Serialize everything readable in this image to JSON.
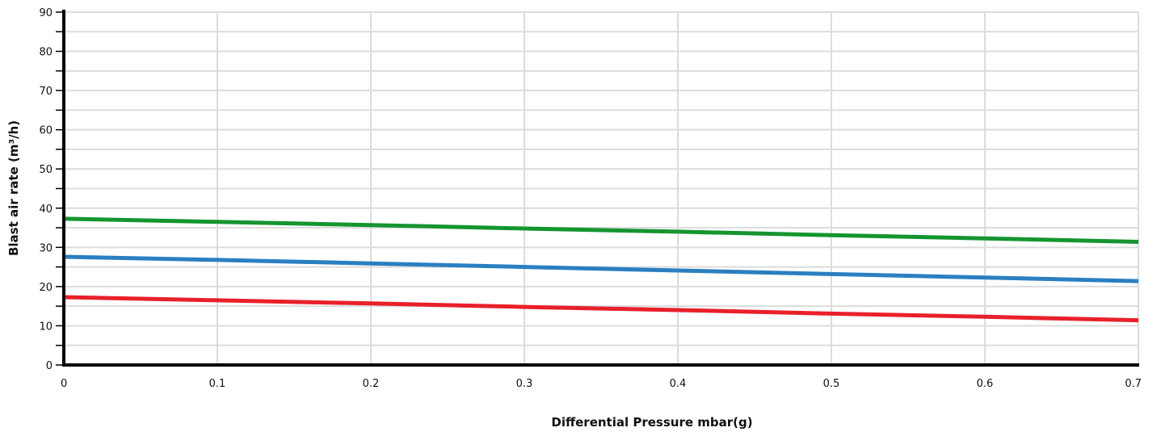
{
  "chart_data": {
    "type": "line",
    "title": "",
    "xlabel": "Differential Pressure mbar(g)",
    "ylabel": "Blast air rate (m³/h)",
    "xlim": [
      0,
      0.7
    ],
    "ylim": [
      0,
      90
    ],
    "x_ticks": [
      "0",
      "0.1",
      "0.2",
      "0.3",
      "0.4",
      "0.5",
      "0.6",
      "0.7"
    ],
    "y_ticks": [
      "0",
      "10",
      "20",
      "30",
      "40",
      "50",
      "60",
      "70",
      "80",
      "90"
    ],
    "grid": true,
    "legend": "none",
    "series": [
      {
        "color": "#159530",
        "x": [
          0,
          0.1,
          0.2,
          0.3,
          0.4,
          0.5,
          0.6,
          0.7
        ],
        "y": [
          37.3,
          36.5,
          35.7,
          34.8,
          34.0,
          33.1,
          32.3,
          31.4
        ]
      },
      {
        "color": "#2a7fc1",
        "x": [
          0,
          0.1,
          0.2,
          0.3,
          0.4,
          0.5,
          0.6,
          0.7
        ],
        "y": [
          27.6,
          26.8,
          25.9,
          25.0,
          24.1,
          23.2,
          22.3,
          21.4
        ]
      },
      {
        "color": "#e8202a",
        "x": [
          0,
          0.1,
          0.2,
          0.3,
          0.4,
          0.5,
          0.6,
          0.7
        ],
        "y": [
          17.3,
          16.5,
          15.7,
          14.8,
          14.0,
          13.1,
          12.3,
          11.4
        ]
      }
    ]
  }
}
